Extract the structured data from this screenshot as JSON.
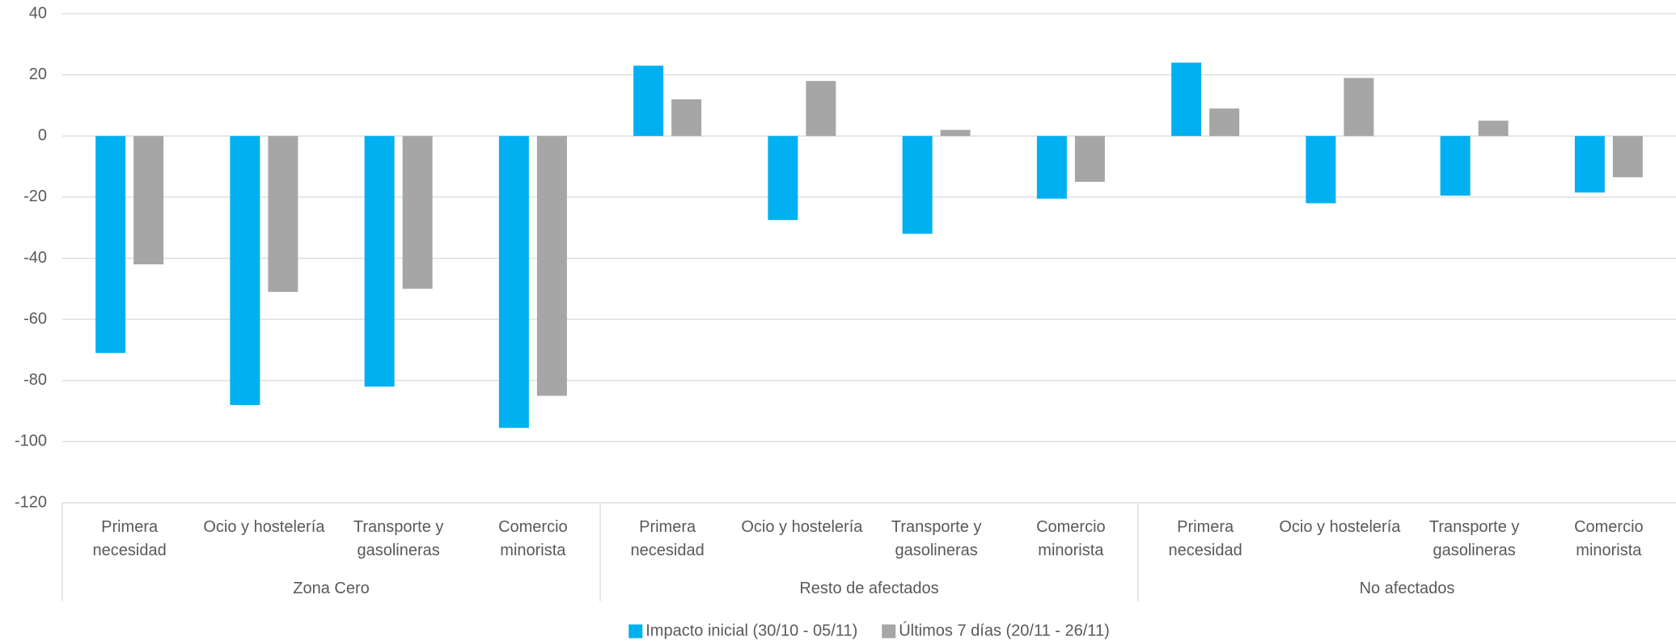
{
  "chart_data": {
    "type": "bar",
    "categories": [
      "Primera\nnecesidad",
      "Ocio y hostelería",
      "Transporte y\ngasolineras",
      "Comercio\nminorista",
      "Primera\nnecesidad",
      "Ocio y hostelería",
      "Transporte y\ngasolineras",
      "Comercio\nminorista",
      "Primera\nnecesidad",
      "Ocio y hostelería",
      "Transporte y\ngasolineras",
      "Comercio\nminorista"
    ],
    "groups": [
      "Zona Cero",
      "Resto de afectados",
      "No afectados"
    ],
    "series": [
      {
        "name": "Impacto inicial (30/10 - 05/11)",
        "color": "#00b0f0",
        "values": [
          -71,
          -88,
          -82,
          -95.5,
          23,
          -27.5,
          -32,
          -20.5,
          24,
          -22,
          -19.5,
          -18.5
        ]
      },
      {
        "name": "Últimos 7 días (20/11 - 26/11)",
        "color": "#a6a6a6",
        "values": [
          -42,
          -51,
          -50,
          -85,
          12,
          18,
          2,
          -15,
          9,
          19,
          5,
          -13.5
        ]
      }
    ],
    "ylim": [
      -120,
      40
    ],
    "yticks": [
      -120,
      -100,
      -80,
      -60,
      -40,
      -20,
      0,
      20,
      40
    ],
    "grid": true,
    "legend": "bottom"
  }
}
